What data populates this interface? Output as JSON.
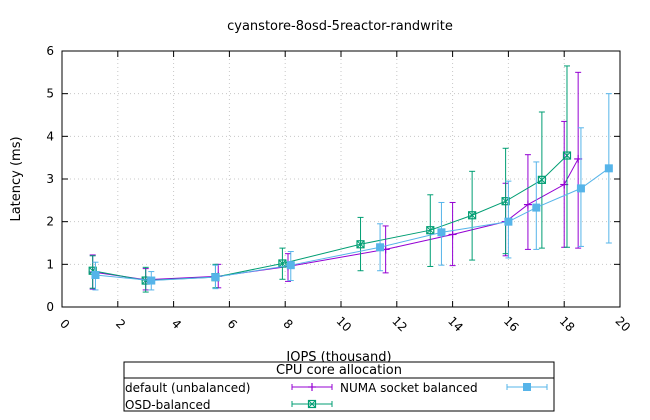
{
  "chart_data": {
    "type": "line",
    "title": "cyanstore-8osd-5reactor-randwrite",
    "xlabel": "IOPS (thousand)",
    "ylabel": "Latency (ms)",
    "xlim": [
      0,
      20
    ],
    "ylim": [
      0,
      6
    ],
    "xticks": [
      0,
      2,
      4,
      6,
      8,
      10,
      12,
      14,
      16,
      18,
      20
    ],
    "yticks": [
      0,
      1,
      2,
      3,
      4,
      5,
      6
    ],
    "grid": true,
    "legend": {
      "title": "CPU core allocation",
      "placement": "bottom"
    },
    "series": [
      {
        "name": "default (unbalanced)",
        "color": "#9400d3",
        "marker": "plus",
        "x": [
          1.1,
          3.0,
          5.6,
          8.1,
          11.6,
          14.0,
          15.9,
          16.7,
          18.0,
          18.5
        ],
        "y": [
          0.82,
          0.64,
          0.72,
          0.95,
          1.35,
          1.7,
          2.0,
          2.4,
          2.87,
          3.47
        ],
        "err_low": [
          0.42,
          0.4,
          0.45,
          0.6,
          0.8,
          0.97,
          1.2,
          1.35,
          1.4,
          1.38
        ],
        "err_high": [
          1.22,
          0.9,
          1.0,
          1.25,
          1.9,
          2.45,
          2.9,
          3.57,
          4.35,
          5.5
        ]
      },
      {
        "name": "OSD-balanced",
        "color": "#009e73",
        "marker": "box-x",
        "x": [
          1.1,
          3.0,
          5.5,
          7.9,
          10.7,
          13.2,
          14.7,
          15.9,
          17.2,
          18.1
        ],
        "y": [
          0.85,
          0.62,
          0.7,
          1.02,
          1.47,
          1.8,
          2.15,
          2.48,
          2.98,
          3.55
        ],
        "err_low": [
          0.44,
          0.35,
          0.45,
          0.65,
          0.85,
          0.95,
          1.1,
          1.25,
          1.38,
          1.4
        ],
        "err_high": [
          1.2,
          0.93,
          1.0,
          1.38,
          2.1,
          2.63,
          3.18,
          3.72,
          4.57,
          5.65
        ]
      },
      {
        "name": "NUMA socket balanced",
        "color": "#56b4e9",
        "marker": "square",
        "x": [
          1.2,
          3.2,
          5.5,
          8.2,
          11.4,
          13.6,
          16.0,
          17.0,
          18.6,
          19.6
        ],
        "y": [
          0.75,
          0.62,
          0.7,
          0.98,
          1.4,
          1.75,
          2.0,
          2.33,
          2.78,
          3.25
        ],
        "err_low": [
          0.4,
          0.4,
          0.43,
          0.62,
          0.85,
          0.98,
          1.15,
          1.35,
          1.42,
          1.5
        ],
        "err_high": [
          1.05,
          0.83,
          0.98,
          1.3,
          1.95,
          2.45,
          2.95,
          3.4,
          4.2,
          5.0
        ]
      }
    ]
  }
}
